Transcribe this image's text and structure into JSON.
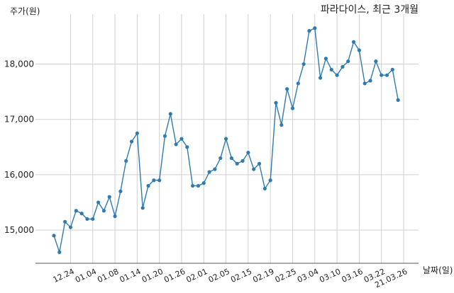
{
  "chart_data": {
    "type": "line",
    "title": "파라다이스, 최근 3개월",
    "ylabel": "주가(원)",
    "xlabel": "날짜(일)",
    "ylim": [
      14400,
      18800
    ],
    "grid": true,
    "y_ticks": [
      15000,
      16000,
      17000,
      18000
    ],
    "y_tick_labels": [
      "15,000",
      "16,000",
      "17,000",
      "18,000"
    ],
    "x_tick_labels": [
      "12.24",
      "01.04",
      "01.08",
      "01.14",
      "01.20",
      "01.26",
      "02.01",
      "02.05",
      "02.15",
      "02.19",
      "02.25",
      "03.04",
      "03.10",
      "03.16",
      "03.22",
      "21.03.26"
    ],
    "x_tick_index": [
      3,
      7,
      11,
      15,
      19,
      23,
      27,
      31,
      35,
      39,
      43,
      47,
      51,
      55,
      59,
      63
    ],
    "series": [
      {
        "color": "#2f7bb0",
        "values": [
          14900,
          14600,
          15150,
          15050,
          15350,
          15300,
          15200,
          15200,
          15500,
          15350,
          15600,
          15250,
          15700,
          16250,
          16600,
          16750,
          15400,
          15800,
          15900,
          15900,
          16700,
          17100,
          16550,
          16650,
          16500,
          15800,
          15800,
          15850,
          16050,
          16100,
          16300,
          16650,
          16300,
          16200,
          16250,
          16400,
          16100,
          16200,
          15750,
          15900,
          17300,
          16900,
          17550,
          17200,
          17650,
          18000,
          18600,
          18650,
          17750,
          18100,
          17900,
          17800,
          17950,
          18050,
          18400,
          18250,
          17650,
          17700,
          18050,
          17800,
          17800,
          17900,
          17350
        ]
      }
    ]
  }
}
